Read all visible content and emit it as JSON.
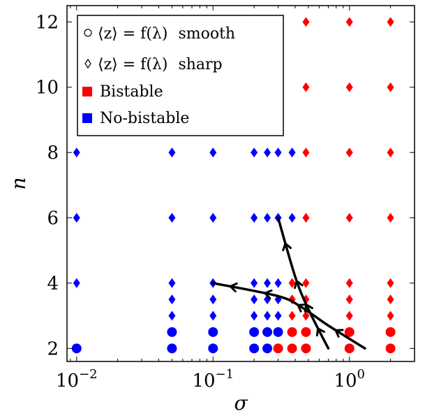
{
  "chart_data": {
    "type": "scatter",
    "xlabel": "σ",
    "ylabel": "n",
    "xscale": "log",
    "xlim": [
      0.0085,
      3.0
    ],
    "ylim": [
      1.6,
      12.5
    ],
    "x_ticks": [
      {
        "value": 0.01,
        "base": "10",
        "exp": "−2"
      },
      {
        "value": 0.1,
        "base": "10",
        "exp": "−1"
      },
      {
        "value": 1,
        "base": "10",
        "exp": "0"
      }
    ],
    "y_ticks": [
      2,
      4,
      6,
      8,
      10,
      12
    ],
    "legend": {
      "position": "top-left",
      "items": [
        {
          "marker": "circle-outline",
          "prefix": "⟨z⟩ = f(λ)",
          "suffix": "smooth"
        },
        {
          "marker": "diamond-outline",
          "prefix": "⟨z⟩ = f(λ)",
          "suffix": "sharp"
        },
        {
          "marker": "square-red",
          "label": "Bistable"
        },
        {
          "marker": "square-blue",
          "label": "No-bistable"
        }
      ]
    },
    "colors": {
      "bistable": "#ff0000",
      "no_bistable": "#0000ff"
    },
    "series": [
      {
        "name": "Bistable",
        "marker": "circle",
        "color": "#ff0000",
        "points": [
          [
            0.3,
            2
          ],
          [
            0.38,
            2
          ],
          [
            0.48,
            2
          ],
          [
            1,
            2
          ],
          [
            2,
            2
          ],
          [
            0.38,
            2.5
          ],
          [
            0.48,
            2.5
          ],
          [
            1,
            2.5
          ],
          [
            2,
            2.5
          ]
        ]
      },
      {
        "name": "Bistable",
        "marker": "diamond",
        "color": "#ff0000",
        "points": [
          [
            0.38,
            3
          ],
          [
            0.48,
            3
          ],
          [
            1,
            3
          ],
          [
            2,
            3
          ],
          [
            0.38,
            3.5
          ],
          [
            0.48,
            3.5
          ],
          [
            1,
            3.5
          ],
          [
            2,
            3.5
          ],
          [
            0.38,
            4
          ],
          [
            0.48,
            4
          ],
          [
            1,
            4
          ],
          [
            2,
            4
          ],
          [
            0.48,
            6
          ],
          [
            1,
            6
          ],
          [
            2,
            6
          ],
          [
            0.48,
            8
          ],
          [
            1,
            8
          ],
          [
            2,
            8
          ],
          [
            0.48,
            10
          ],
          [
            1,
            10
          ],
          [
            2,
            10
          ],
          [
            0.48,
            12
          ],
          [
            1,
            12
          ],
          [
            2,
            12
          ]
        ]
      },
      {
        "name": "No-bistable",
        "marker": "circle",
        "color": "#0000ff",
        "points": [
          [
            0.01,
            2
          ],
          [
            0.05,
            2
          ],
          [
            0.1,
            2
          ],
          [
            0.2,
            2
          ],
          [
            0.25,
            2
          ],
          [
            0.05,
            2.5
          ],
          [
            0.1,
            2.5
          ],
          [
            0.2,
            2.5
          ],
          [
            0.25,
            2.5
          ],
          [
            0.3,
            2.5
          ]
        ]
      },
      {
        "name": "No-bistable",
        "marker": "diamond",
        "color": "#0000ff",
        "points": [
          [
            0.05,
            3
          ],
          [
            0.1,
            3
          ],
          [
            0.2,
            3
          ],
          [
            0.25,
            3
          ],
          [
            0.3,
            3
          ],
          [
            0.05,
            3.5
          ],
          [
            0.1,
            3.5
          ],
          [
            0.2,
            3.5
          ],
          [
            0.25,
            3.5
          ],
          [
            0.3,
            3.5
          ],
          [
            0.01,
            4
          ],
          [
            0.05,
            4
          ],
          [
            0.1,
            4
          ],
          [
            0.2,
            4
          ],
          [
            0.25,
            4
          ],
          [
            0.3,
            4
          ],
          [
            0.01,
            6
          ],
          [
            0.05,
            6
          ],
          [
            0.1,
            6
          ],
          [
            0.2,
            6
          ],
          [
            0.25,
            6
          ],
          [
            0.3,
            6
          ],
          [
            0.38,
            6
          ],
          [
            0.01,
            8
          ],
          [
            0.05,
            8
          ],
          [
            0.1,
            8
          ],
          [
            0.2,
            8
          ],
          [
            0.25,
            8
          ],
          [
            0.3,
            8
          ],
          [
            0.38,
            8
          ]
        ]
      }
    ],
    "boundary_curves": [
      {
        "points": [
          [
            0.1,
            4
          ],
          [
            0.3,
            3.6
          ],
          [
            0.45,
            3.25
          ],
          [
            0.7,
            2.7
          ],
          [
            1.3,
            2
          ]
        ],
        "arrows_at": [
          0.13,
          0.34,
          0.55,
          0.82
        ]
      },
      {
        "points": [
          [
            0.3,
            6
          ],
          [
            0.4,
            4.2
          ],
          [
            0.5,
            3.2
          ],
          [
            0.7,
            2
          ]
        ],
        "arrows_at": [
          0.22,
          0.5,
          0.68,
          0.87
        ]
      }
    ]
  }
}
